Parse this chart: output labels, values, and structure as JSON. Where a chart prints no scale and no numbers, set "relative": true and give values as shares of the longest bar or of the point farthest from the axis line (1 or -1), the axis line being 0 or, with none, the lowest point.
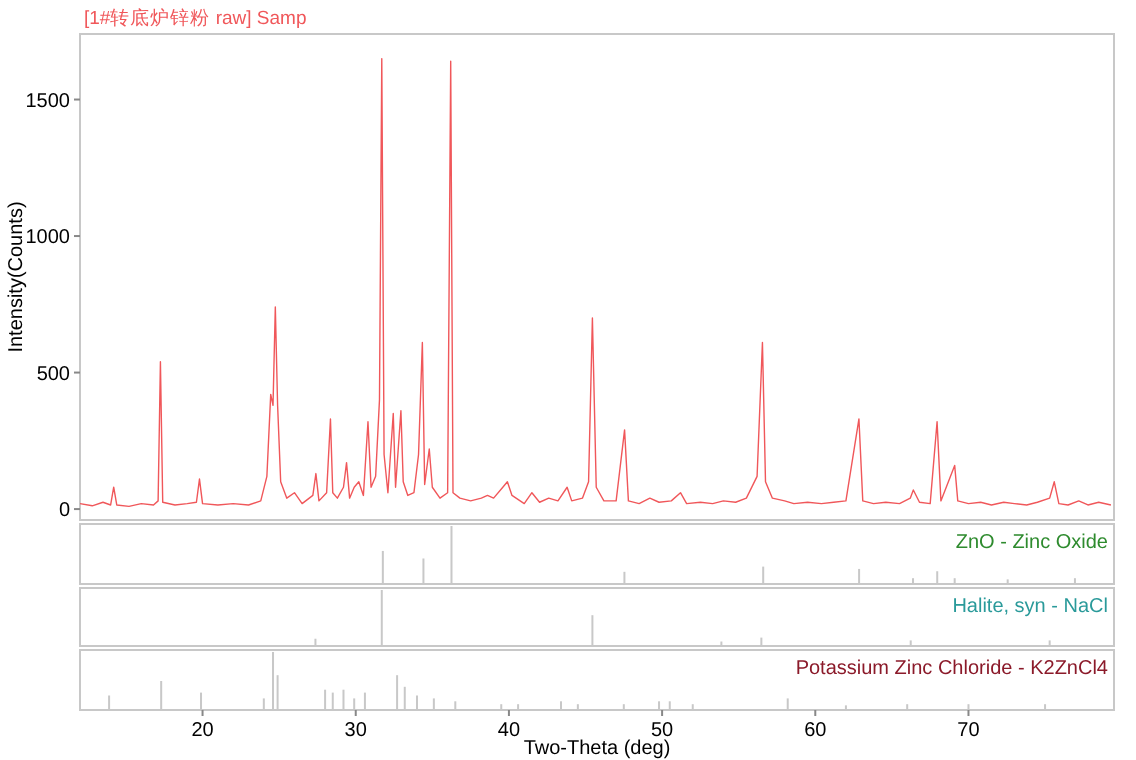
{
  "chart_data": [
    {
      "type": "line",
      "title": "[1#转底炉锌粉 raw] Samp",
      "ylabel": "Intensity(Counts)",
      "xlim": [
        12,
        79.5
      ],
      "ylim": [
        -40,
        1740
      ],
      "yticks": [
        0,
        500,
        1000,
        1500
      ],
      "tick_labels": "y",
      "series": [
        {
          "color": "#f0575a",
          "x": [
            12.0,
            12.8,
            13.5,
            14.0,
            14.2,
            14.4,
            15.2,
            16.0,
            16.8,
            17.1,
            17.25,
            17.4,
            18.2,
            19.0,
            19.6,
            19.8,
            20.0,
            21.0,
            22.0,
            23.0,
            23.8,
            24.2,
            24.45,
            24.6,
            24.75,
            24.9,
            25.1,
            25.5,
            26.0,
            26.5,
            27.2,
            27.4,
            27.6,
            28.1,
            28.35,
            28.5,
            28.8,
            29.2,
            29.4,
            29.6,
            29.9,
            30.2,
            30.5,
            30.8,
            31.0,
            31.3,
            31.55,
            31.7,
            31.85,
            32.1,
            32.45,
            32.6,
            32.95,
            33.1,
            33.4,
            33.8,
            34.1,
            34.35,
            34.5,
            34.8,
            35.0,
            35.5,
            36.0,
            36.2,
            36.35,
            36.8,
            37.5,
            38.2,
            38.6,
            39.0,
            39.6,
            39.9,
            40.2,
            41.0,
            41.5,
            42.0,
            42.6,
            43.2,
            43.8,
            44.1,
            44.8,
            45.2,
            45.45,
            45.7,
            46.2,
            47.0,
            47.55,
            47.8,
            48.5,
            49.2,
            49.8,
            50.6,
            51.2,
            51.6,
            52.5,
            53.3,
            54.0,
            54.8,
            55.5,
            56.2,
            56.55,
            56.75,
            57.2,
            58.0,
            58.6,
            59.5,
            60.4,
            61.2,
            62.0,
            62.85,
            63.1,
            63.8,
            64.6,
            65.5,
            66.2,
            66.4,
            66.8,
            67.5,
            67.95,
            68.2,
            69.1,
            69.3,
            70.0,
            70.8,
            71.5,
            72.3,
            73.0,
            73.8,
            74.5,
            75.3,
            75.6,
            75.9,
            76.5,
            77.2,
            77.8,
            78.5,
            79.3
          ],
          "values": [
            20,
            12,
            25,
            15,
            80,
            15,
            10,
            20,
            15,
            30,
            540,
            25,
            15,
            20,
            25,
            110,
            20,
            15,
            20,
            15,
            30,
            120,
            420,
            380,
            740,
            380,
            100,
            40,
            60,
            20,
            50,
            130,
            30,
            60,
            330,
            60,
            40,
            80,
            170,
            40,
            80,
            100,
            50,
            320,
            80,
            120,
            400,
            1650,
            200,
            60,
            350,
            80,
            360,
            100,
            50,
            60,
            200,
            610,
            90,
            220,
            80,
            40,
            60,
            1640,
            60,
            40,
            30,
            40,
            50,
            40,
            80,
            100,
            50,
            20,
            60,
            25,
            40,
            30,
            80,
            30,
            40,
            100,
            700,
            80,
            30,
            30,
            290,
            30,
            20,
            40,
            25,
            30,
            60,
            20,
            25,
            20,
            30,
            25,
            40,
            120,
            610,
            100,
            40,
            30,
            20,
            25,
            20,
            25,
            30,
            330,
            30,
            20,
            25,
            20,
            40,
            70,
            25,
            20,
            320,
            30,
            160,
            30,
            20,
            25,
            15,
            25,
            20,
            15,
            25,
            40,
            100,
            20,
            15,
            30,
            15,
            25,
            15
          ]
        }
      ]
    },
    {
      "type": "bar",
      "title": "ZnO - Zinc Oxide",
      "relative": true,
      "xlim": [
        12,
        79.5
      ],
      "tick_labels": false,
      "series": [
        {
          "color": "#c8c8c8",
          "x": [
            31.77,
            34.42,
            36.25,
            47.54,
            56.6,
            62.86,
            66.38,
            67.96,
            69.1,
            72.56,
            76.95
          ],
          "values": [
            0.57,
            0.44,
            1,
            0.21,
            0.3,
            0.26,
            0.1,
            0.22,
            0.1,
            0.08,
            0.1
          ]
        }
      ]
    },
    {
      "type": "bar",
      "title": "Halite, syn - NaCl",
      "relative": true,
      "xlim": [
        12,
        79.5
      ],
      "tick_labels": false,
      "series": [
        {
          "color": "#c8c8c8",
          "x": [
            27.37,
            31.7,
            45.45,
            53.87,
            56.48,
            66.23,
            75.3
          ],
          "values": [
            0.13,
            1,
            0.55,
            0.08,
            0.15,
            0.1,
            0.1
          ]
        }
      ]
    },
    {
      "type": "bar",
      "title": "Potassium Zinc Chloride - K2ZnCl4",
      "xlabel": "Two-Theta (deg)",
      "relative": true,
      "xlim": [
        12,
        79.5
      ],
      "xticks": [
        20,
        30,
        40,
        50,
        60,
        70
      ],
      "tick_labels": "x",
      "series": [
        {
          "color": "#c8c8c8",
          "x": [
            13.9,
            17.3,
            19.9,
            24.0,
            24.6,
            24.9,
            28.0,
            28.5,
            29.2,
            29.9,
            30.6,
            32.7,
            33.2,
            34.0,
            35.1,
            36.5,
            39.5,
            40.6,
            43.4,
            44.5,
            47.5,
            49.8,
            50.5,
            52.0,
            58.2,
            62.0,
            66.0,
            70.0,
            75.0
          ],
          "values": [
            0.25,
            0.5,
            0.3,
            0.2,
            1,
            0.6,
            0.35,
            0.3,
            0.35,
            0.2,
            0.3,
            0.6,
            0.4,
            0.25,
            0.2,
            0.15,
            0.1,
            0.1,
            0.15,
            0.1,
            0.1,
            0.15,
            0.15,
            0.1,
            0.2,
            0.08,
            0.1,
            0.1,
            0.1
          ]
        }
      ]
    }
  ]
}
